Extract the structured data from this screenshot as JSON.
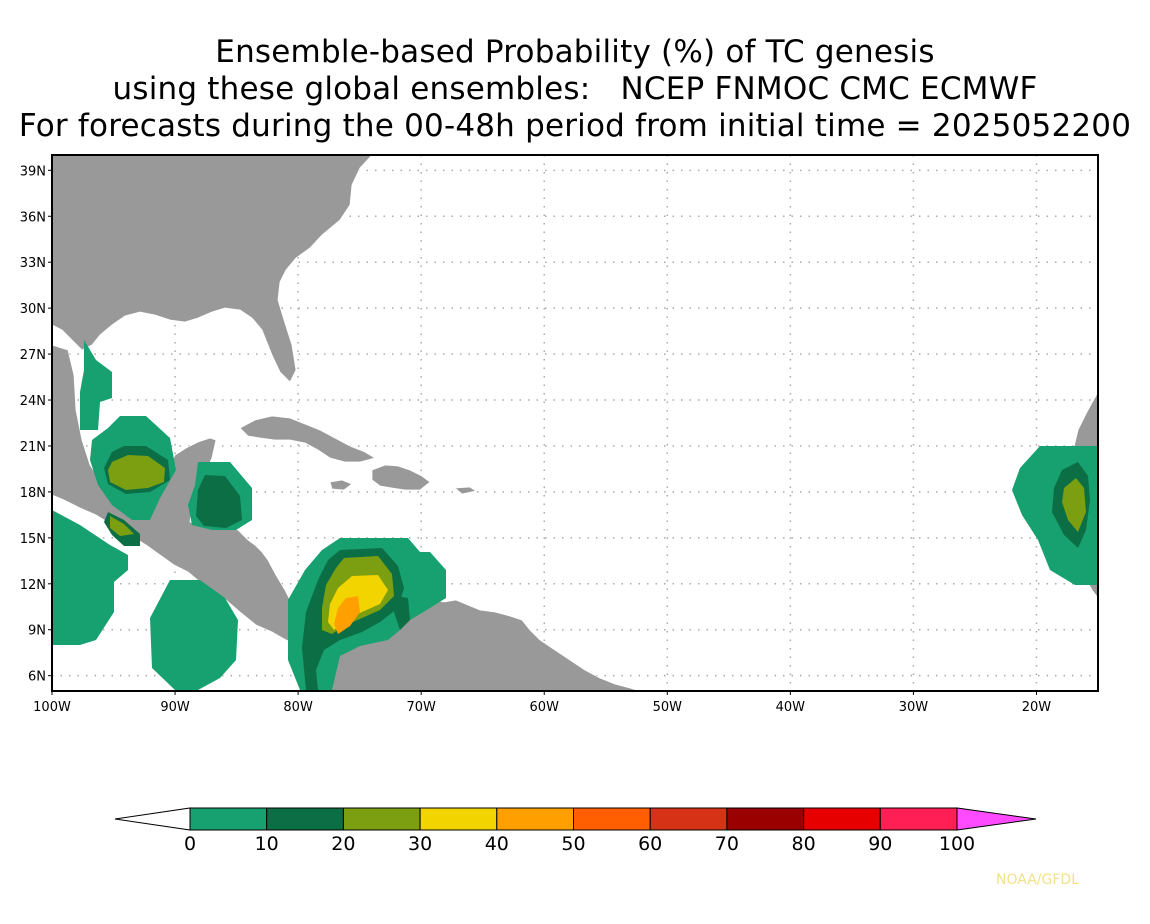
{
  "title": {
    "line1": "Ensemble-based Probability (%) of TC genesis",
    "line2": "using these global ensembles:   NCEP FNMOC CMC ECMWF",
    "line3": "For forecasts during the 00-48h period from initial time = 2025052200"
  },
  "map": {
    "lon_range": [
      -100,
      -15
    ],
    "lat_range": [
      5,
      40
    ],
    "lat_ticks": [
      "39N",
      "36N",
      "33N",
      "30N",
      "27N",
      "24N",
      "21N",
      "18N",
      "15N",
      "12N",
      "9N",
      "6N"
    ],
    "lon_ticks": [
      "100W",
      "90W",
      "80W",
      "70W",
      "60W",
      "50W",
      "40W",
      "30W",
      "20W"
    ],
    "land_color": "#999999",
    "grid": "dotted",
    "probability_regions": [
      {
        "area": "Gulf of Mexico / western Gulf coast",
        "max_percent": "10-20"
      },
      {
        "area": "Bay of Campeche",
        "max_percent": "20-30"
      },
      {
        "area": "Yucatan Peninsula",
        "max_percent": "10-20"
      },
      {
        "area": "Eastern Pacific off southern Mexico",
        "max_percent": "0-10"
      },
      {
        "area": "Southwestern Caribbean Sea",
        "max_percent": "40-50"
      },
      {
        "area": "Eastern Atlantic off West Africa",
        "max_percent": "20-30"
      }
    ]
  },
  "colorbar": {
    "labels": [
      "0",
      "10",
      "20",
      "30",
      "40",
      "50",
      "60",
      "70",
      "80",
      "90",
      "100"
    ],
    "colors": [
      "#17a070",
      "#0c6e45",
      "#7b9f10",
      "#f2d400",
      "#ffa000",
      "#ff5f00",
      "#d63215",
      "#9a0000",
      "#e60000",
      "#ff1f55",
      "#ff4bff"
    ]
  },
  "credit": "NOAA/GFDL"
}
